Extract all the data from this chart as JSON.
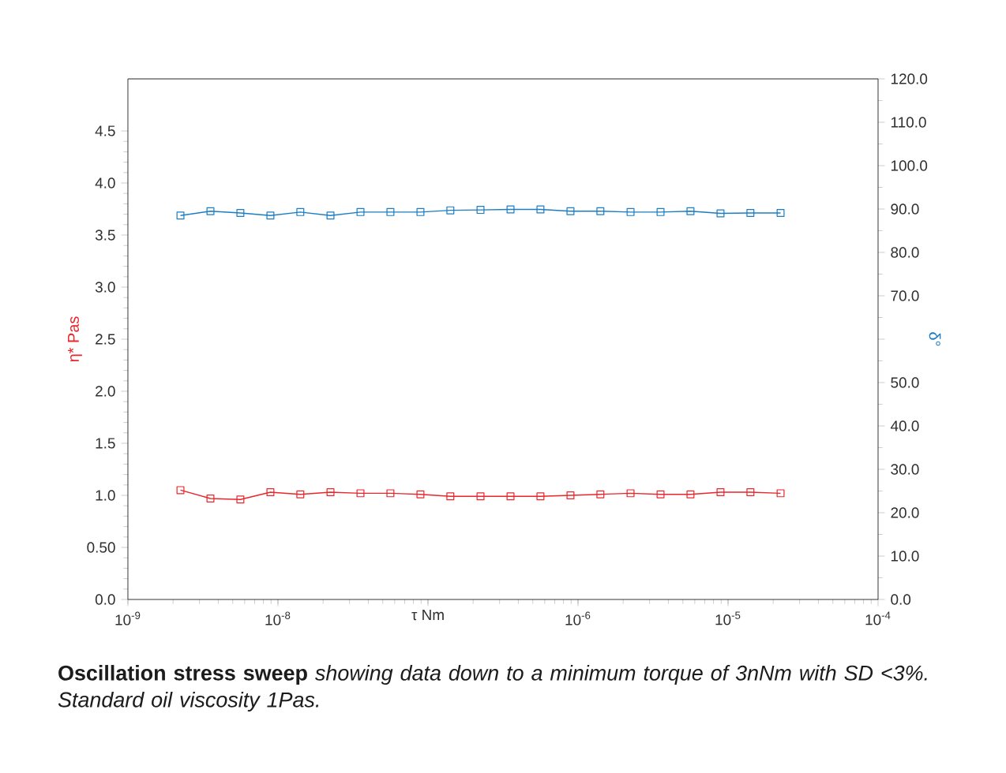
{
  "chart_data": {
    "type": "line",
    "xlabel": "τ Nm",
    "ylabel": "η* Pas",
    "y2label": "δ°",
    "x": [
      2.24e-09,
      3.55e-09,
      5.62e-09,
      8.91e-09,
      1.41e-08,
      2.24e-08,
      3.55e-08,
      5.62e-08,
      8.91e-08,
      1.41e-07,
      2.24e-07,
      3.55e-07,
      5.62e-07,
      8.91e-07,
      1.41e-06,
      2.24e-06,
      3.55e-06,
      5.62e-06,
      8.91e-06,
      1.41e-05,
      2.24e-05
    ],
    "series": [
      {
        "color": "#e8262c",
        "values": [
          1.05,
          0.97,
          0.96,
          1.03,
          1.01,
          1.03,
          1.02,
          1.02,
          1.01,
          0.99,
          0.99,
          0.99,
          0.99,
          1.0,
          1.01,
          1.02,
          1.01,
          1.01,
          1.03,
          1.03,
          1.02
        ]
      },
      {
        "color": "#1a7dc4",
        "axis": "y2",
        "values": [
          88.5,
          89.5,
          89.1,
          88.5,
          89.3,
          88.5,
          89.3,
          89.3,
          89.3,
          89.7,
          89.8,
          89.9,
          89.9,
          89.5,
          89.5,
          89.3,
          89.3,
          89.5,
          89.0,
          89.1,
          89.1
        ]
      }
    ],
    "log": "x",
    "marker": "square",
    "line_style": "solid",
    "xlim": [
      1e-09,
      0.0001
    ],
    "xticks": [
      {
        "value": 1e-09,
        "label": "10$^{-9}$"
      },
      {
        "value": 1e-08,
        "label": "10$^{-8}$"
      },
      {
        "value": 1e-07,
        "label": null
      },
      {
        "value": 1e-06,
        "label": "10$^{-6}$"
      },
      {
        "value": 1e-05,
        "label": "10$^{-5}$"
      },
      {
        "value": 0.0001,
        "label": "10$^{-4}$"
      }
    ],
    "ylim": [
      0,
      5
    ],
    "yticks": [
      {
        "value": 0,
        "label": "0.0"
      },
      {
        "value": 0.5,
        "label": "0.50"
      },
      {
        "value": 1,
        "label": "1.0"
      },
      {
        "value": 1.5,
        "label": "1.5"
      },
      {
        "value": 2,
        "label": "2.0"
      },
      {
        "value": 2.5,
        "label": "2.5"
      },
      {
        "value": 3,
        "label": "3.0"
      },
      {
        "value": 3.5,
        "label": "3.5"
      },
      {
        "value": 4,
        "label": "4.0"
      },
      {
        "value": 4.5,
        "label": "4.5"
      }
    ],
    "y2lim": [
      0,
      120
    ],
    "y2ticks": [
      {
        "value": 0,
        "label": "0.0"
      },
      {
        "value": 10,
        "label": "10.0"
      },
      {
        "value": 20,
        "label": "20.0"
      },
      {
        "value": 30,
        "label": "30.0"
      },
      {
        "value": 40,
        "label": "40.0"
      },
      {
        "value": 50,
        "label": "50.0"
      },
      {
        "value": 60,
        "label": null
      },
      {
        "value": 70,
        "label": "70.0"
      },
      {
        "value": 80,
        "label": "80.0"
      },
      {
        "value": 90,
        "label": "90.0"
      },
      {
        "value": 100,
        "label": "100.0"
      },
      {
        "value": 110,
        "label": "110.0"
      },
      {
        "value": 120,
        "label": "120.0"
      }
    ],
    "annotations": [
      "**Oscillation stress sweep** *showing data down to a minimum torque of 3nNm with SD <3%. Standard oil viscosity 1Pas.*"
    ]
  }
}
